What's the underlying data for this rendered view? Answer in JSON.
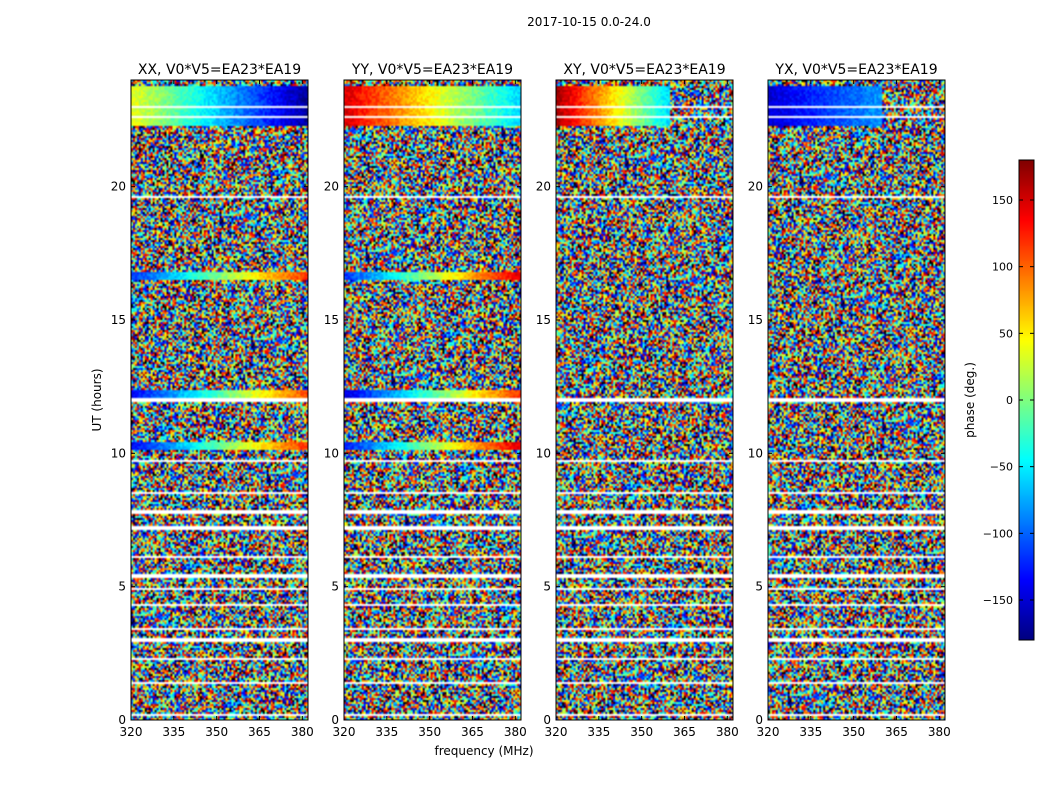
{
  "figure_title": "2017-10-15 0.0-24.0",
  "xlabel": "frequency (MHz)",
  "ylabel": "UT (hours)",
  "colorbar": {
    "label": "phase (deg.)",
    "range": [
      -180,
      180
    ],
    "ticks": [
      150,
      100,
      50,
      0,
      -50,
      -100,
      -150
    ],
    "tick_labels": [
      "150",
      "100",
      "50",
      "0",
      "−50",
      "−100",
      "−150"
    ],
    "colormap": "jet"
  },
  "chart_data": [
    {
      "type": "heatmap",
      "title": "XX, V0*V5=EA23*EA19",
      "xlim": [
        320,
        382
      ],
      "ylim": [
        0,
        24
      ],
      "xticks": [
        320,
        335,
        350,
        365,
        380
      ],
      "yticks": [
        0,
        5,
        10,
        15,
        20
      ],
      "z_range": [
        -180,
        180
      ],
      "coherent_bands": [
        {
          "t0": 22.3,
          "t1": 23.8,
          "f0": 320,
          "f1": 382,
          "phase_start": 40,
          "phase_end": -170
        },
        {
          "t0": 16.5,
          "t1": 16.8,
          "f0": 320,
          "f1": 382,
          "phase_start": -120,
          "phase_end": 120
        },
        {
          "t0": 12.1,
          "t1": 12.4,
          "f0": 320,
          "f1": 382,
          "phase_start": -140,
          "phase_end": 110
        },
        {
          "t0": 10.1,
          "t1": 10.4,
          "f0": 320,
          "f1": 382,
          "phase_start": -140,
          "phase_end": 120
        }
      ],
      "flagged_times": [
        0.2,
        1.4,
        2.3,
        3.0,
        3.4,
        4.3,
        4.9,
        5.4,
        6.1,
        7.2,
        7.8,
        8.5,
        9.7,
        12.0,
        19.6,
        22.6,
        23.0
      ]
    },
    {
      "type": "heatmap",
      "title": "YY, V0*V5=EA23*EA19",
      "xlim": [
        320,
        382
      ],
      "ylim": [
        0,
        24
      ],
      "xticks": [
        320,
        335,
        350,
        365,
        380
      ],
      "yticks": [
        0,
        5,
        10,
        15,
        20
      ],
      "z_range": [
        -180,
        180
      ],
      "coherent_bands": [
        {
          "t0": 22.3,
          "t1": 23.8,
          "f0": 320,
          "f1": 382,
          "phase_start": 150,
          "phase_end": -60
        },
        {
          "t0": 16.5,
          "t1": 16.8,
          "f0": 320,
          "f1": 382,
          "phase_start": -120,
          "phase_end": 150
        },
        {
          "t0": 12.1,
          "t1": 12.4,
          "f0": 320,
          "f1": 382,
          "phase_start": -150,
          "phase_end": 120
        },
        {
          "t0": 10.1,
          "t1": 10.4,
          "f0": 320,
          "f1": 382,
          "phase_start": -130,
          "phase_end": 150
        }
      ],
      "flagged_times": [
        0.2,
        1.4,
        2.3,
        3.0,
        3.4,
        4.3,
        4.9,
        5.4,
        6.1,
        7.2,
        7.8,
        8.5,
        9.7,
        12.0,
        19.6,
        22.6,
        23.0
      ]
    },
    {
      "type": "heatmap",
      "title": "XY, V0*V5=EA23*EA19",
      "xlim": [
        320,
        382
      ],
      "ylim": [
        0,
        24
      ],
      "xticks": [
        320,
        335,
        350,
        365,
        380
      ],
      "yticks": [
        0,
        5,
        10,
        15,
        20
      ],
      "z_range": [
        -180,
        180
      ],
      "coherent_bands": [
        {
          "t0": 22.3,
          "t1": 23.8,
          "f0": 320,
          "f1": 360,
          "phase_start": 170,
          "phase_end": -60
        }
      ],
      "flagged_times": [
        0.2,
        1.4,
        2.3,
        3.0,
        3.4,
        4.3,
        4.9,
        5.4,
        6.1,
        7.2,
        7.8,
        8.5,
        9.7,
        12.0,
        19.6,
        22.6,
        23.0
      ]
    },
    {
      "type": "heatmap",
      "title": "YX, V0*V5=EA23*EA19",
      "xlim": [
        320,
        382
      ],
      "ylim": [
        0,
        24
      ],
      "xticks": [
        320,
        335,
        350,
        365,
        380
      ],
      "yticks": [
        0,
        5,
        10,
        15,
        20
      ],
      "z_range": [
        -180,
        180
      ],
      "coherent_bands": [
        {
          "t0": 22.3,
          "t1": 23.8,
          "f0": 320,
          "f1": 360,
          "phase_start": -150,
          "phase_end": -80
        }
      ],
      "flagged_times": [
        0.2,
        1.4,
        2.3,
        3.0,
        3.4,
        4.3,
        4.9,
        5.4,
        6.1,
        7.2,
        7.8,
        8.5,
        9.7,
        12.0,
        19.6,
        22.6,
        23.0
      ]
    }
  ]
}
